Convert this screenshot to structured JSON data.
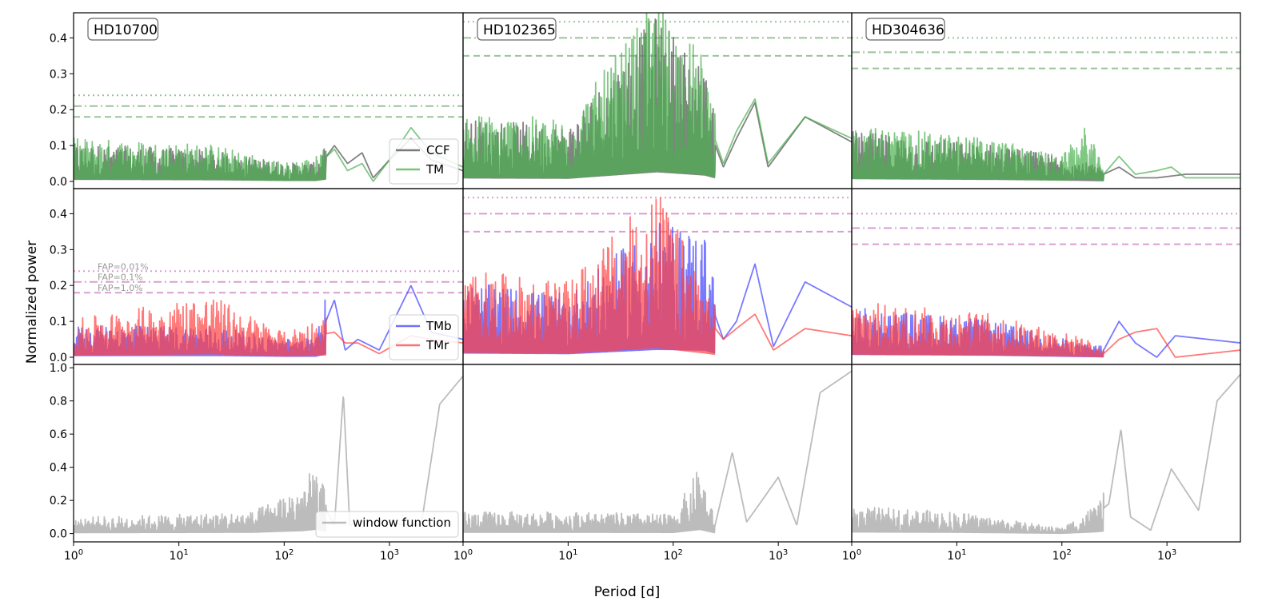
{
  "figure": {
    "xlabel": "Period [d]",
    "ylabel": "Normalized power",
    "xscale": "log",
    "xticks": [
      {
        "value": 1,
        "base": "10",
        "exp": "0"
      },
      {
        "value": 10,
        "base": "10",
        "exp": "1"
      },
      {
        "value": 100,
        "base": "10",
        "exp": "2"
      },
      {
        "value": 1000,
        "base": "10",
        "exp": "3"
      }
    ]
  },
  "colors": {
    "ccf": "#4d4d4d",
    "tm": "#4caf50",
    "tmb": "#4040ff",
    "tmr": "#ff4040",
    "window": "#a6a6a6",
    "fap_top": "#5a9a5a",
    "fap_mid": "#c060b0",
    "fap_label": "#999999"
  },
  "chart_data": [
    {
      "type": "line",
      "panel": "top",
      "star": "HD10700",
      "xlim": [
        1,
        5000
      ],
      "ylim": [
        -0.02,
        0.47
      ],
      "yticks": [
        "0.0",
        "0.1",
        "0.2",
        "0.3",
        "0.4"
      ],
      "series": [
        {
          "name": "CCF",
          "color": "#4d4d4d",
          "x": [
            1,
            20,
            100,
            200,
            300,
            400,
            550,
            700,
            1000,
            1600,
            2500,
            5000
          ],
          "y": [
            0.06,
            0.05,
            0.03,
            0.03,
            0.1,
            0.05,
            0.08,
            0.01,
            0.06,
            0.12,
            0.06,
            0.03
          ]
        },
        {
          "name": "TM",
          "color": "#4caf50",
          "x": [
            1,
            20,
            100,
            200,
            300,
            400,
            550,
            700,
            1000,
            1600,
            2500,
            5000
          ],
          "y": [
            0.07,
            0.06,
            0.03,
            0.04,
            0.09,
            0.03,
            0.05,
            0.0,
            0.06,
            0.15,
            0.08,
            0.04
          ]
        }
      ],
      "fap_levels": [
        {
          "name": "FAP=0.01%",
          "y": 0.24,
          "style": "dotted"
        },
        {
          "name": "FAP=0.1%",
          "y": 0.21,
          "style": "dashdot"
        },
        {
          "name": "FAP=1.0%",
          "y": 0.18,
          "style": "dashed"
        }
      ],
      "legend": [
        "CCF",
        "TM"
      ],
      "legend_position": "lower-right"
    },
    {
      "type": "line",
      "panel": "top",
      "star": "HD102365",
      "xlim": [
        1,
        5000
      ],
      "ylim": [
        -0.02,
        0.47
      ],
      "series": [
        {
          "name": "CCF",
          "color": "#4d4d4d",
          "x": [
            1,
            10,
            70,
            200,
            300,
            400,
            600,
            800,
            1800,
            5000
          ],
          "y": [
            0.1,
            0.09,
            0.27,
            0.18,
            0.04,
            0.12,
            0.22,
            0.04,
            0.18,
            0.11
          ]
        },
        {
          "name": "TM",
          "color": "#4caf50",
          "x": [
            1,
            10,
            70,
            200,
            300,
            400,
            600,
            800,
            1800,
            5000
          ],
          "y": [
            0.11,
            0.1,
            0.29,
            0.2,
            0.05,
            0.14,
            0.23,
            0.05,
            0.18,
            0.12
          ]
        }
      ],
      "fap_levels": [
        {
          "name": "FAP=0.01%",
          "y": 0.445,
          "style": "dotted"
        },
        {
          "name": "FAP=0.1%",
          "y": 0.4,
          "style": "dashdot"
        },
        {
          "name": "FAP=1.0%",
          "y": 0.35,
          "style": "dashed"
        }
      ]
    },
    {
      "type": "line",
      "panel": "top",
      "star": "HD304636",
      "xlim": [
        1,
        5000
      ],
      "ylim": [
        -0.02,
        0.47
      ],
      "series": [
        {
          "name": "CCF",
          "color": "#4d4d4d",
          "x": [
            1,
            20,
            100,
            170,
            250,
            350,
            500,
            800,
            1500,
            5000
          ],
          "y": [
            0.08,
            0.06,
            0.04,
            0.03,
            0.02,
            0.04,
            0.01,
            0.01,
            0.02,
            0.02
          ]
        },
        {
          "name": "TM",
          "color": "#4caf50",
          "x": [
            1,
            20,
            100,
            170,
            250,
            350,
            500,
            800,
            1100,
            1500,
            5000
          ],
          "y": [
            0.09,
            0.07,
            0.04,
            0.09,
            0.02,
            0.07,
            0.02,
            0.03,
            0.04,
            0.01,
            0.01
          ]
        }
      ],
      "fap_levels": [
        {
          "name": "FAP=0.01%",
          "y": 0.4,
          "style": "dotted"
        },
        {
          "name": "FAP=0.1%",
          "y": 0.36,
          "style": "dashdot"
        },
        {
          "name": "FAP=1.0%",
          "y": 0.315,
          "style": "dashed"
        }
      ]
    },
    {
      "type": "line",
      "panel": "middle",
      "star": "HD10700",
      "xlim": [
        1,
        5000
      ],
      "ylim": [
        -0.02,
        0.47
      ],
      "yticks": [
        "0.0",
        "0.1",
        "0.2",
        "0.3",
        "0.4"
      ],
      "series": [
        {
          "name": "TMb",
          "color": "#4040ff",
          "x": [
            1,
            20,
            100,
            200,
            300,
            380,
            500,
            800,
            1600,
            2500,
            5000
          ],
          "y": [
            0.05,
            0.05,
            0.03,
            0.03,
            0.16,
            0.02,
            0.05,
            0.02,
            0.2,
            0.07,
            0.05
          ]
        },
        {
          "name": "TMr",
          "color": "#ff4040",
          "x": [
            1,
            20,
            100,
            200,
            300,
            380,
            500,
            800,
            1600,
            2500,
            5000
          ],
          "y": [
            0.06,
            0.1,
            0.04,
            0.06,
            0.07,
            0.04,
            0.04,
            0.01,
            0.06,
            0.05,
            0.04
          ]
        }
      ],
      "fap_levels": [
        {
          "name": "FAP=0.01%",
          "y": 0.24,
          "style": "dotted"
        },
        {
          "name": "FAP=0.1%",
          "y": 0.21,
          "style": "dashdot"
        },
        {
          "name": "FAP=1.0%",
          "y": 0.18,
          "style": "dashed"
        }
      ],
      "legend": [
        "TMb",
        "TMr"
      ],
      "legend_position": "lower-right"
    },
    {
      "type": "line",
      "panel": "middle",
      "star": "HD102365",
      "xlim": [
        1,
        5000
      ],
      "ylim": [
        -0.02,
        0.47
      ],
      "series": [
        {
          "name": "TMb",
          "color": "#4040ff",
          "x": [
            1,
            10,
            70,
            200,
            300,
            400,
            600,
            900,
            1800,
            5000
          ],
          "y": [
            0.12,
            0.1,
            0.22,
            0.2,
            0.05,
            0.1,
            0.26,
            0.03,
            0.21,
            0.14
          ]
        },
        {
          "name": "TMr",
          "color": "#ff4040",
          "x": [
            1,
            10,
            70,
            200,
            300,
            400,
            600,
            900,
            1800,
            5000
          ],
          "y": [
            0.14,
            0.12,
            0.27,
            0.12,
            0.05,
            0.08,
            0.12,
            0.02,
            0.08,
            0.06
          ]
        }
      ],
      "fap_levels": [
        {
          "name": "FAP=0.01%",
          "y": 0.445,
          "style": "dotted"
        },
        {
          "name": "FAP=0.1%",
          "y": 0.4,
          "style": "dashdot"
        },
        {
          "name": "FAP=1.0%",
          "y": 0.35,
          "style": "dashed"
        }
      ]
    },
    {
      "type": "line",
      "panel": "middle",
      "star": "HD304636",
      "xlim": [
        1,
        5000
      ],
      "ylim": [
        -0.02,
        0.47
      ],
      "series": [
        {
          "name": "TMb",
          "color": "#4040ff",
          "x": [
            1,
            20,
            100,
            170,
            250,
            350,
            500,
            800,
            1200,
            5000
          ],
          "y": [
            0.08,
            0.06,
            0.03,
            0.02,
            0.02,
            0.1,
            0.04,
            0.0,
            0.06,
            0.04
          ]
        },
        {
          "name": "TMr",
          "color": "#ff4040",
          "x": [
            1,
            20,
            100,
            170,
            250,
            350,
            500,
            800,
            1200,
            5000
          ],
          "y": [
            0.09,
            0.07,
            0.04,
            0.03,
            0.01,
            0.05,
            0.07,
            0.08,
            0.0,
            0.02
          ]
        }
      ],
      "fap_levels": [
        {
          "name": "FAP=0.01%",
          "y": 0.4,
          "style": "dotted"
        },
        {
          "name": "FAP=0.1%",
          "y": 0.36,
          "style": "dashdot"
        },
        {
          "name": "FAP=1.0%",
          "y": 0.315,
          "style": "dashed"
        }
      ]
    },
    {
      "type": "line",
      "panel": "bottom",
      "star": "HD10700",
      "xlim": [
        1,
        5000
      ],
      "ylim": [
        -0.05,
        1.02
      ],
      "yticks": [
        "0.0",
        "0.2",
        "0.4",
        "0.6",
        "0.8",
        "1.0"
      ],
      "series": [
        {
          "name": "window function",
          "color": "#a6a6a6",
          "x": [
            1,
            10,
            50,
            150,
            200,
            300,
            365,
            420,
            600,
            1000,
            2000,
            3000,
            5000
          ],
          "y": [
            0.06,
            0.07,
            0.08,
            0.18,
            0.26,
            0.05,
            0.84,
            0.05,
            0.08,
            0.06,
            0.05,
            0.78,
            0.95
          ]
        }
      ],
      "legend": [
        "window function"
      ],
      "legend_position": "lower-right"
    },
    {
      "type": "line",
      "panel": "bottom",
      "star": "HD102365",
      "xlim": [
        1,
        5000
      ],
      "ylim": [
        -0.05,
        1.02
      ],
      "series": [
        {
          "name": "window function",
          "color": "#a6a6a6",
          "x": [
            1,
            10,
            100,
            180,
            250,
            365,
            500,
            700,
            1000,
            1500,
            2500,
            5000
          ],
          "y": [
            0.08,
            0.08,
            0.07,
            0.25,
            0.05,
            0.49,
            0.07,
            0.2,
            0.34,
            0.05,
            0.85,
            0.98
          ]
        }
      ]
    },
    {
      "type": "line",
      "panel": "bottom",
      "star": "HD304636",
      "xlim": [
        1,
        5000
      ],
      "ylim": [
        -0.05,
        1.02
      ],
      "series": [
        {
          "name": "window function",
          "color": "#a6a6a6",
          "x": [
            1,
            10,
            100,
            200,
            280,
            365,
            450,
            700,
            1100,
            2000,
            3000,
            5000
          ],
          "y": [
            0.1,
            0.08,
            0.02,
            0.1,
            0.18,
            0.63,
            0.1,
            0.02,
            0.39,
            0.14,
            0.8,
            0.96
          ]
        }
      ]
    }
  ]
}
